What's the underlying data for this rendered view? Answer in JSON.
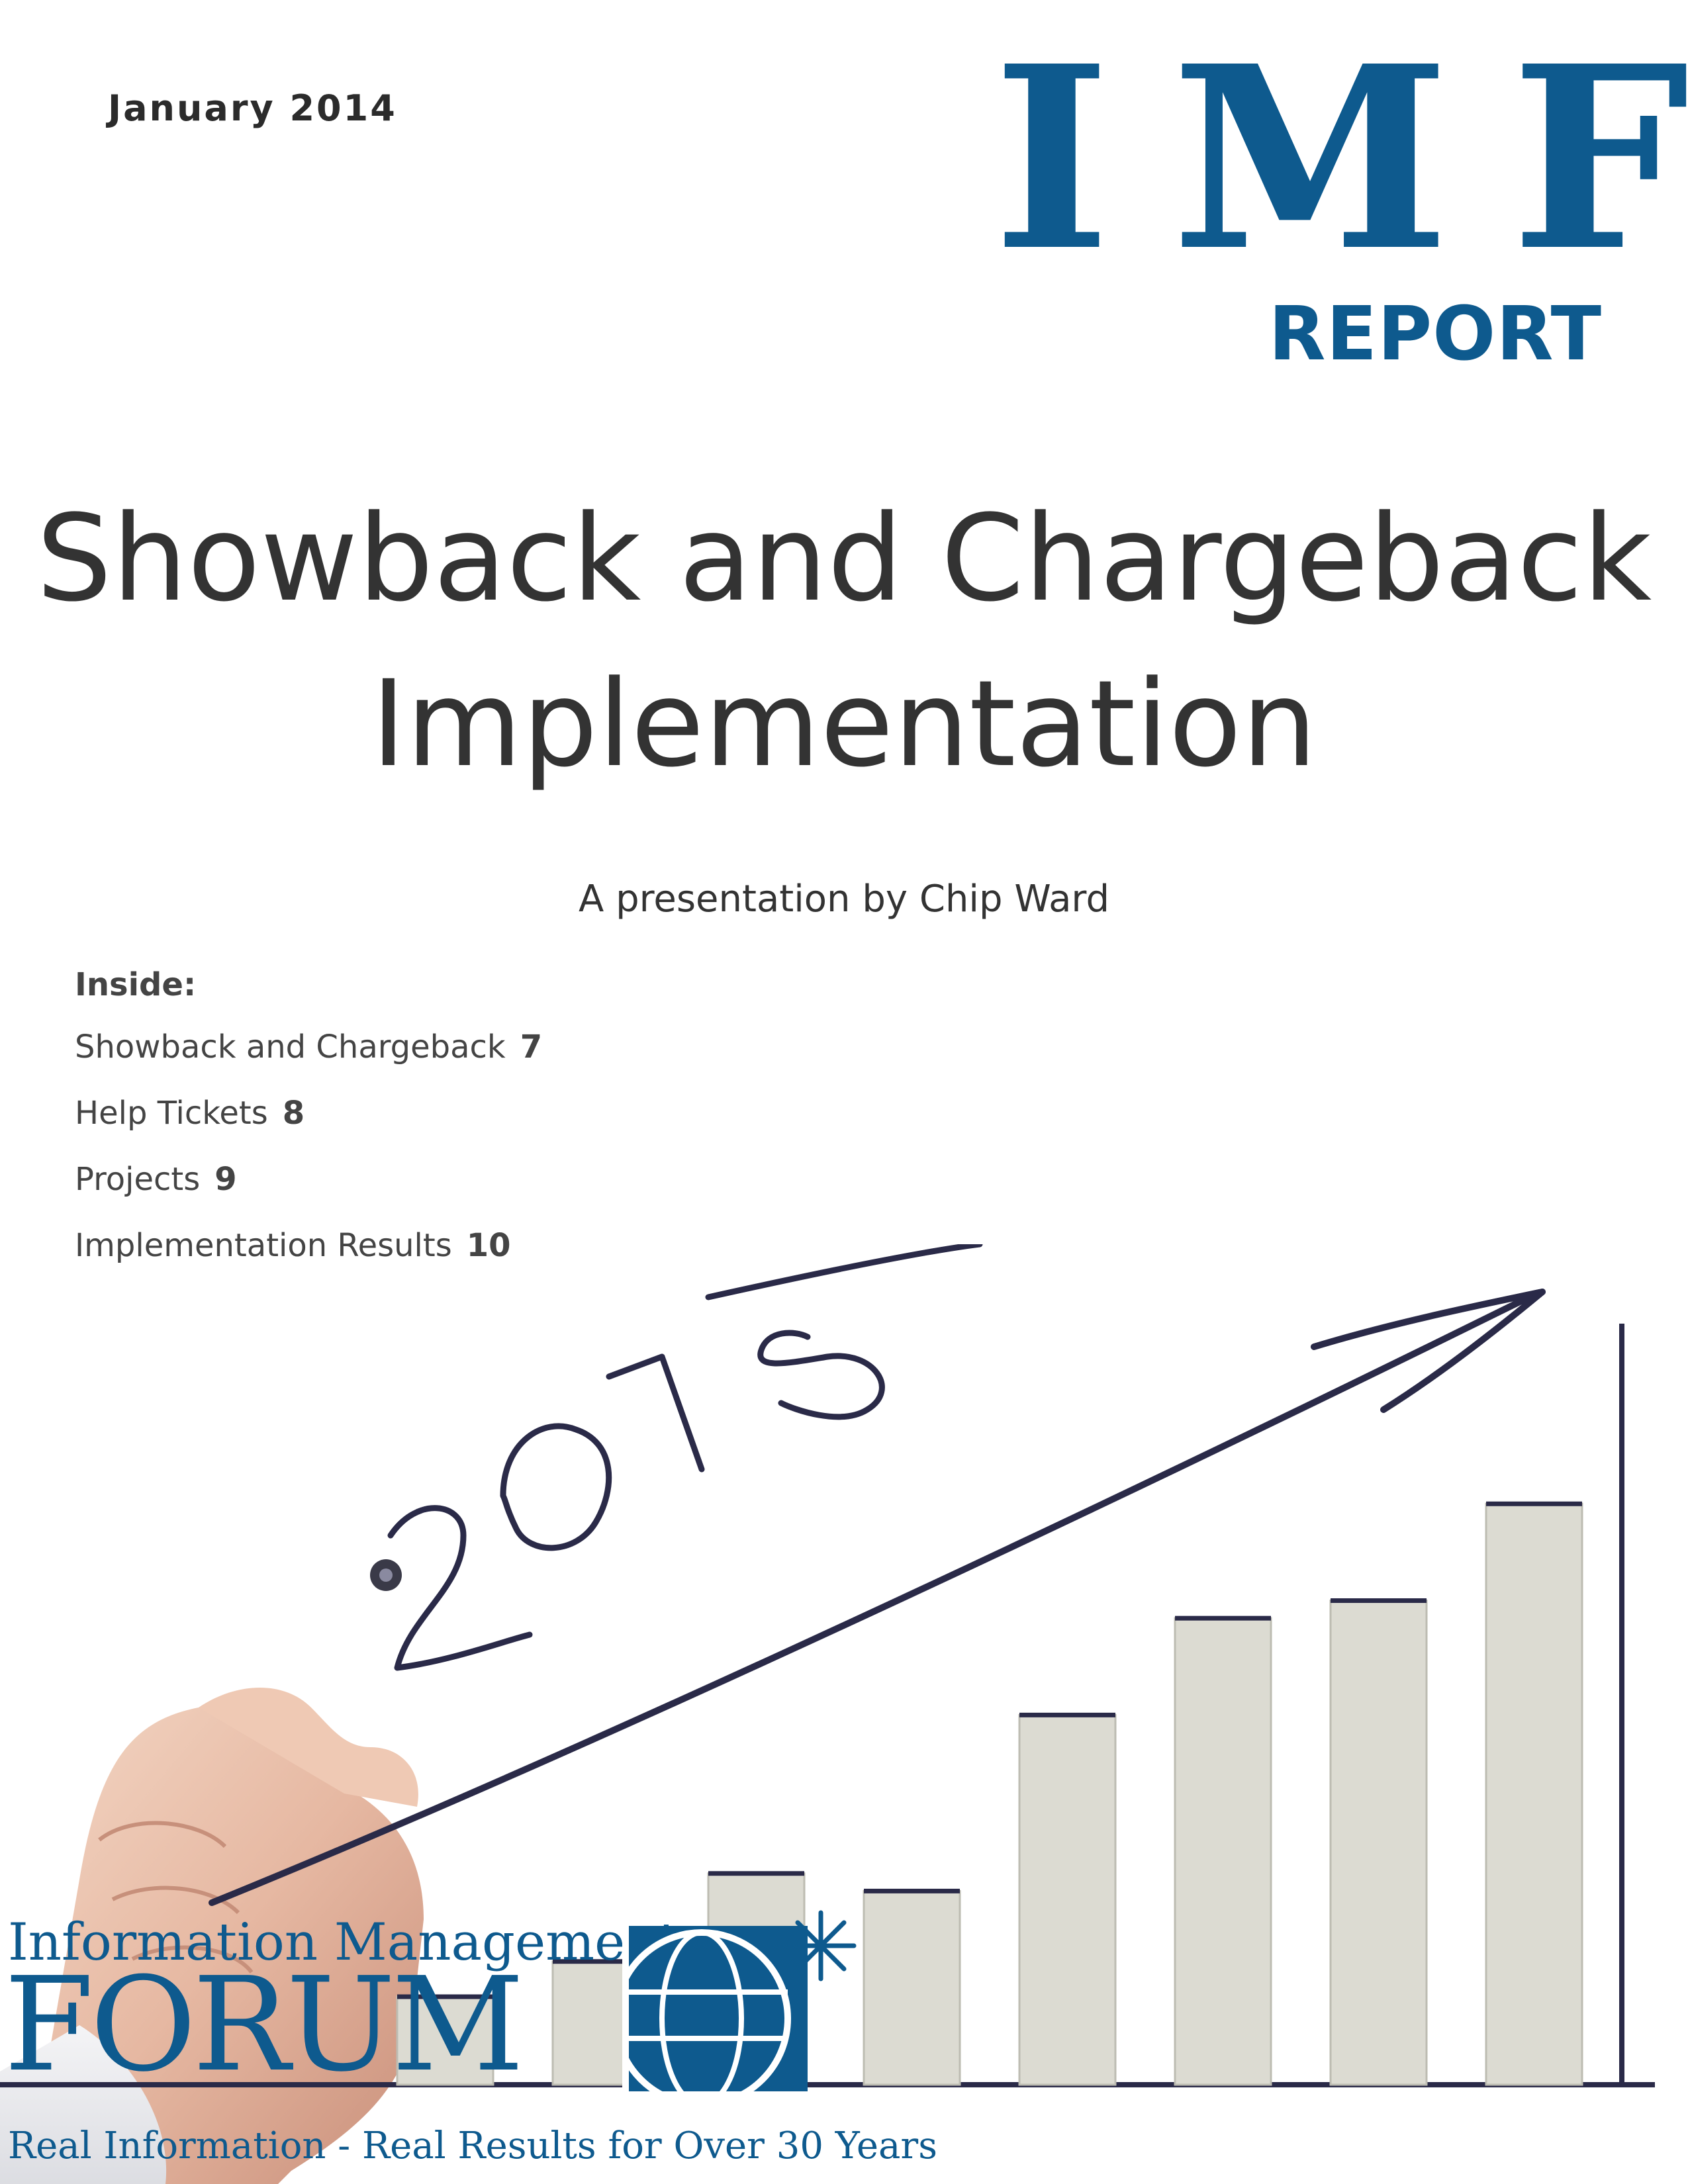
{
  "header": {
    "date": "January 2014",
    "brand_letters": "IMF",
    "brand_sub": "REPORT"
  },
  "title": {
    "line1": "Showback and Chargeback",
    "line2": "Implementation"
  },
  "subtitle": "A presentation by Chip Ward",
  "inside": {
    "heading": "Inside:",
    "items": [
      {
        "label": "Showback and Chargeback",
        "page": "7"
      },
      {
        "label": "Help Tickets",
        "page": "8"
      },
      {
        "label": "Projects",
        "page": "9"
      },
      {
        "label": "Implementation Results",
        "page": "10"
      }
    ]
  },
  "illustration": {
    "handwritten_year": "2015",
    "bars": [
      0.1,
      0.14,
      0.24,
      0.22,
      0.42,
      0.53,
      0.55,
      0.66
    ]
  },
  "logo": {
    "line1": "Information Management",
    "line2": "FORUM",
    "tagline": "Real Information - Real Results for Over 30 Years"
  },
  "colors": {
    "brand_blue": "#0e5a8e",
    "title_text": "#333333",
    "bar_fill": "#dcdbd2",
    "bar_stroke": "#2a2a48"
  }
}
